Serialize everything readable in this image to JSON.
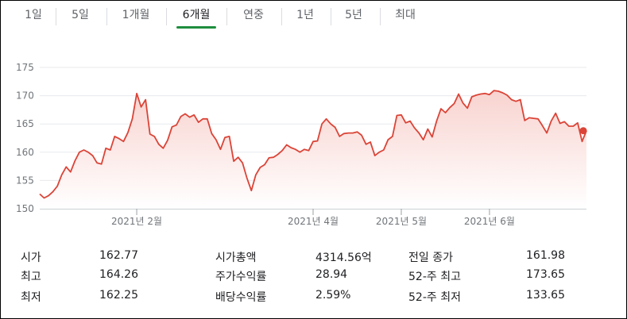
{
  "tabs": [
    "1일",
    "5일",
    "1개월",
    "6개월",
    "연중",
    "1년",
    "5년",
    "최대"
  ],
  "active_tab": "6개월",
  "colors": {
    "line": "#db4437",
    "fill_top": "#f8d3cf",
    "fill_bottom": "#ffffff",
    "active_tab": "#1e8e3e"
  },
  "chart_data": {
    "type": "area",
    "title": "",
    "xlabel": "",
    "ylabel": "",
    "ylim": [
      150,
      175
    ],
    "yticks": [
      150,
      155,
      160,
      165,
      170,
      175
    ],
    "xticks": [
      {
        "label": "2021년 2월",
        "i": 22
      },
      {
        "label": "2021년 4월",
        "i": 62
      },
      {
        "label": "2021년 5월",
        "i": 82
      },
      {
        "label": "2021년 6월",
        "i": 102
      }
    ],
    "values": [
      152.6,
      151.9,
      152.3,
      153.0,
      154.0,
      156.0,
      157.4,
      156.5,
      158.5,
      160.0,
      160.4,
      160.0,
      159.4,
      158.1,
      157.9,
      160.7,
      160.4,
      162.8,
      162.4,
      161.9,
      163.5,
      165.9,
      170.4,
      168.0,
      169.3,
      163.2,
      162.8,
      161.4,
      160.7,
      162.1,
      164.5,
      164.8,
      166.3,
      166.8,
      166.2,
      166.6,
      165.3,
      165.9,
      165.9,
      163.3,
      162.2,
      160.5,
      162.6,
      162.8,
      158.4,
      159.1,
      158.1,
      155.4,
      153.2,
      156.0,
      157.3,
      157.8,
      159.0,
      159.1,
      159.6,
      160.3,
      161.3,
      160.8,
      160.5,
      160.0,
      160.5,
      160.3,
      161.9,
      162.0,
      165.0,
      165.9,
      165.0,
      164.4,
      162.8,
      163.3,
      163.4,
      163.4,
      163.6,
      163.0,
      161.4,
      161.8,
      159.4,
      160.0,
      160.4,
      162.2,
      162.8,
      166.5,
      166.6,
      165.2,
      165.5,
      164.3,
      163.4,
      162.2,
      164.1,
      162.7,
      165.5,
      167.7,
      167.0,
      167.9,
      168.6,
      170.3,
      168.7,
      167.8,
      169.8,
      170.1,
      170.3,
      170.4,
      170.2,
      170.9,
      170.8,
      170.5,
      170.1,
      169.3,
      169.0,
      169.3,
      165.6,
      166.1,
      166.0,
      165.9,
      164.7,
      163.4,
      165.5,
      166.9,
      165.1,
      165.4,
      164.6,
      164.6,
      165.2,
      161.9,
      163.8
    ],
    "last_value": 163.8
  },
  "stats": [
    {
      "label": "시가",
      "value": "162.77"
    },
    {
      "label": "최고",
      "value": "164.26"
    },
    {
      "label": "최저",
      "value": "162.25"
    },
    {
      "label": "시가총액",
      "value": "4314.56억"
    },
    {
      "label": "주가수익률",
      "value": "28.94"
    },
    {
      "label": "배당수익률",
      "value": "2.59%"
    },
    {
      "label": "전일 종가",
      "value": "161.98"
    },
    {
      "label": "52-주 최고",
      "value": "173.65"
    },
    {
      "label": "52-주 최저",
      "value": "133.65"
    }
  ]
}
